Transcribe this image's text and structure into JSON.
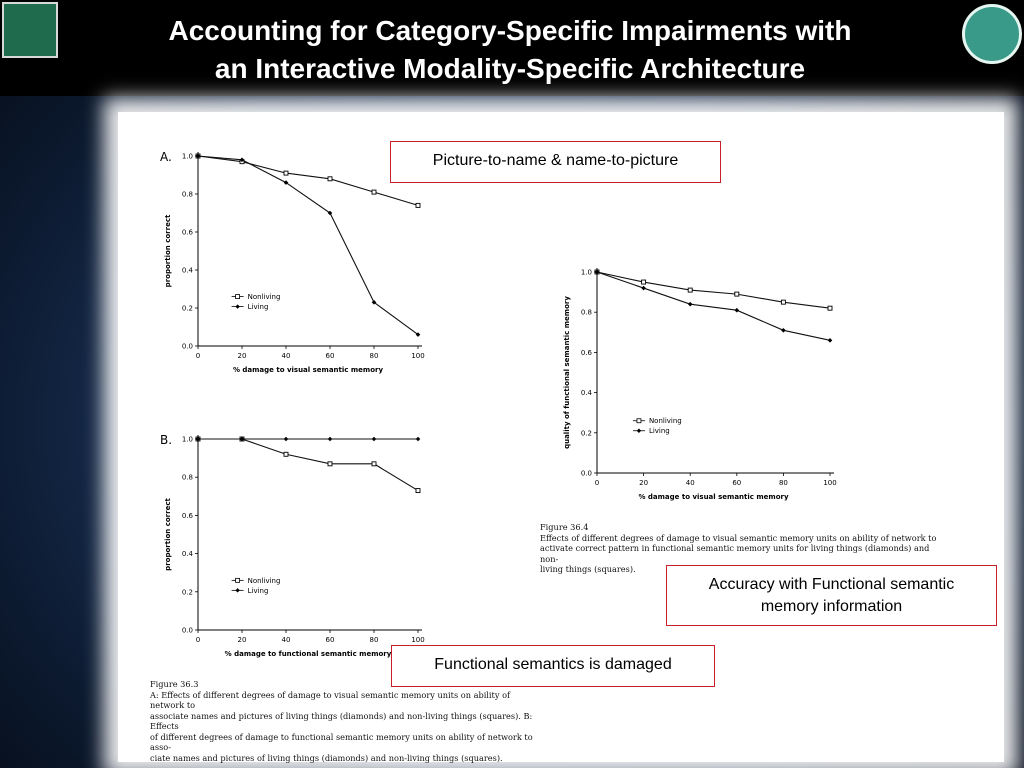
{
  "slide": {
    "title_line1": "Accounting for Category-Specific Impairments with",
    "title_line2": "an Interactive Modality-Specific Architecture"
  },
  "callouts": {
    "picture_to_name": "Picture-to-name & name-to-picture",
    "functional_accuracy_line1": "Accuracy with Functional semantic",
    "functional_accuracy_line2": "memory information",
    "functional_damaged": "Functional semantics is damaged"
  },
  "captions": {
    "fig_36_3": {
      "title": "Figure 36.3",
      "lines": [
        "A: Effects of different degrees of damage to visual semantic memory units on ability of network to",
        "associate names and pictures of living things (diamonds) and non-living things (squares). B: Effects",
        "of different degrees of damage to functional semantic memory units on ability of network to asso-",
        "ciate names and pictures of living things (diamonds) and non-living things (squares)."
      ]
    },
    "fig_36_4": {
      "title": "Figure 36.4",
      "lines": [
        "Effects of different degrees of damage to visual semantic memory units on ability of network to",
        "activate correct pattern in functional semantic memory units for living things (diamonds) and non-",
        "living things (squares)."
      ]
    }
  },
  "chart_data": [
    {
      "id": "chartA",
      "type": "line",
      "panel_label": "A.",
      "xlabel": "% damage to visual semantic memory",
      "ylabel": "proportion correct",
      "x": [
        0,
        20,
        40,
        60,
        80,
        100
      ],
      "xticks": [
        "0",
        "20",
        "40",
        "60",
        "80",
        "100"
      ],
      "yticks": [
        "0.0",
        "0.2",
        "0.4",
        "0.6",
        "0.8",
        "1.0"
      ],
      "xlim": [
        0,
        100
      ],
      "ylim": [
        0,
        1
      ],
      "legend": "left-lower",
      "series": [
        {
          "name": "Nonliving",
          "marker": "square",
          "values": [
            1.0,
            0.97,
            0.91,
            0.88,
            0.81,
            0.74
          ]
        },
        {
          "name": "Living",
          "marker": "diamond",
          "values": [
            1.0,
            0.98,
            0.86,
            0.7,
            0.23,
            0.06
          ]
        }
      ]
    },
    {
      "id": "chartB",
      "type": "line",
      "panel_label": "B.",
      "xlabel": "% damage to functional semantic memory",
      "ylabel": "proportion correct",
      "x": [
        0,
        20,
        40,
        60,
        80,
        100
      ],
      "xticks": [
        "0",
        "20",
        "40",
        "60",
        "80",
        "100"
      ],
      "yticks": [
        "0.0",
        "0.2",
        "0.4",
        "0.6",
        "0.8",
        "1.0"
      ],
      "xlim": [
        0,
        100
      ],
      "ylim": [
        0,
        1
      ],
      "legend": "left-lower",
      "series": [
        {
          "name": "Nonliving",
          "marker": "square",
          "values": [
            1.0,
            1.0,
            0.92,
            0.87,
            0.87,
            0.73
          ]
        },
        {
          "name": "Living",
          "marker": "diamond",
          "values": [
            1.0,
            1.0,
            1.0,
            1.0,
            1.0,
            1.0
          ]
        }
      ]
    },
    {
      "id": "chartC",
      "type": "line",
      "xlabel": "% damage to visual semantic memory",
      "ylabel": "quality of functional semantic memory",
      "x": [
        0,
        20,
        40,
        60,
        80,
        100
      ],
      "xticks": [
        "0",
        "20",
        "40",
        "60",
        "80",
        "100"
      ],
      "yticks": [
        "0.0",
        "0.2",
        "0.4",
        "0.6",
        "0.8",
        "1.0"
      ],
      "xlim": [
        0,
        100
      ],
      "ylim": [
        0,
        1
      ],
      "legend": "left-lower",
      "series": [
        {
          "name": "Nonliving",
          "marker": "square",
          "values": [
            1.0,
            0.95,
            0.91,
            0.89,
            0.85,
            0.82
          ]
        },
        {
          "name": "Living",
          "marker": "diamond",
          "values": [
            1.0,
            0.92,
            0.84,
            0.81,
            0.71,
            0.66
          ]
        }
      ]
    }
  ]
}
